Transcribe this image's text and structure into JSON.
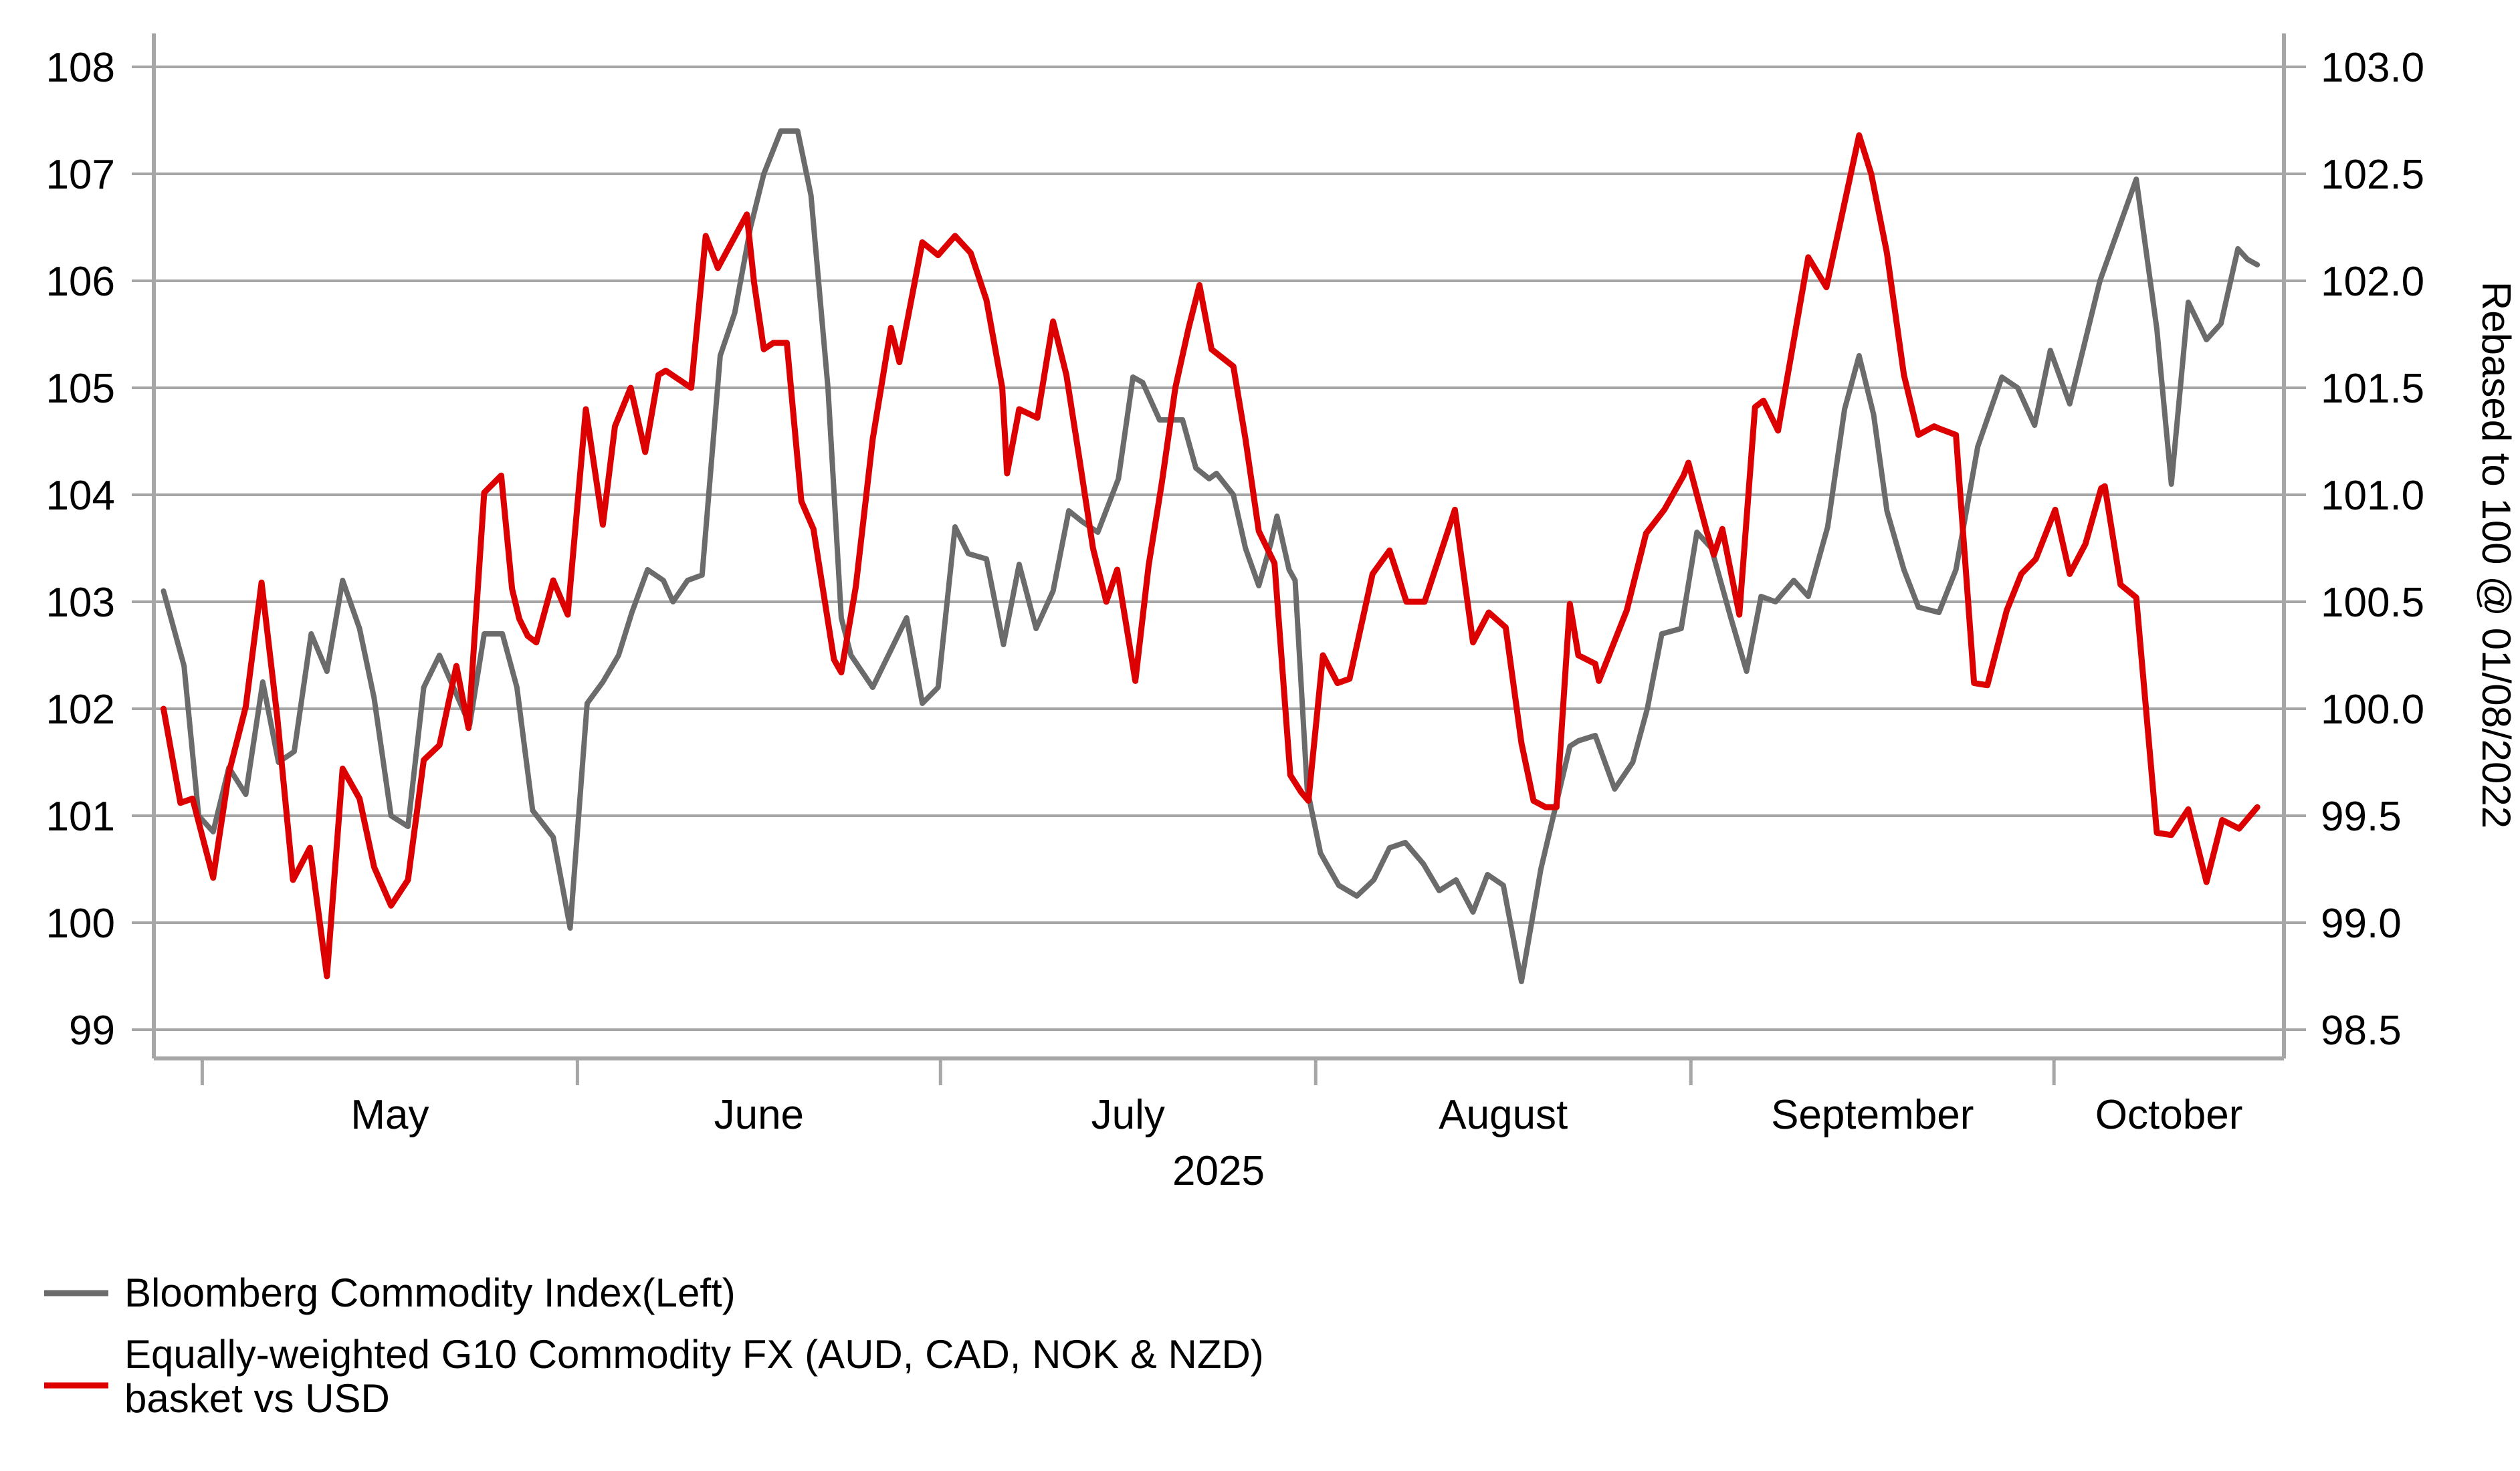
{
  "chart_data": {
    "type": "line",
    "title": "",
    "xlabel": "",
    "x_axis": {
      "year_label": "2025",
      "month_labels": [
        "May",
        "June",
        "July",
        "August",
        "September",
        "October"
      ],
      "month_tick_day_offsets": [
        4,
        35,
        65,
        96,
        127,
        157
      ],
      "domain_days": [
        0,
        176
      ]
    },
    "left_axis": {
      "ticks": [
        99,
        100,
        101,
        102,
        103,
        104,
        105,
        106,
        107,
        108
      ],
      "ylim": [
        99,
        108
      ]
    },
    "right_axis": {
      "ticks": [
        98.5,
        99.0,
        99.5,
        100.0,
        100.5,
        101.0,
        101.5,
        102.0,
        102.5,
        103.0
      ],
      "ylim": [
        98.5,
        103.0
      ],
      "title": "Rebased to 100 @ 01/08/2022"
    },
    "legend": {
      "entries": [
        {
          "label_line1": "Bloomberg Commodity Index(Left)",
          "label_line2": "",
          "color": "#6b6b6b"
        },
        {
          "label_line1": "Equally-weighted G10 Commodity FX (AUD, CAD, NOK & NZD)",
          "label_line2": "basket vs USD",
          "color": "#dd0000"
        }
      ]
    },
    "series": [
      {
        "name": "Bloomberg Commodity Index(Left)",
        "axis": "left",
        "color": "#6b6b6b",
        "stroke_width": 8,
        "points": [
          [
            0.8,
            103.1
          ],
          [
            2.5,
            102.4
          ],
          [
            3.7,
            101.0
          ],
          [
            4.9,
            100.85
          ],
          [
            6.2,
            101.45
          ],
          [
            7.6,
            101.2
          ],
          [
            9.0,
            102.25
          ],
          [
            10.3,
            101.5
          ],
          [
            11.6,
            101.6
          ],
          [
            13.0,
            102.7
          ],
          [
            14.3,
            102.35
          ],
          [
            15.6,
            103.2
          ],
          [
            17.0,
            102.75
          ],
          [
            18.2,
            102.1
          ],
          [
            19.6,
            101.0
          ],
          [
            21.0,
            100.9
          ],
          [
            22.3,
            102.2
          ],
          [
            23.6,
            102.5
          ],
          [
            26.1,
            101.85
          ],
          [
            27.3,
            102.7
          ],
          [
            28.8,
            102.7
          ],
          [
            30.0,
            102.2
          ],
          [
            31.3,
            101.05
          ],
          [
            33.0,
            100.8
          ],
          [
            34.4,
            99.95
          ],
          [
            35.8,
            102.05
          ],
          [
            37.1,
            102.25
          ],
          [
            38.4,
            102.5
          ],
          [
            39.5,
            102.9
          ],
          [
            40.8,
            103.3
          ],
          [
            42.1,
            103.2
          ],
          [
            42.9,
            103.0
          ],
          [
            44.1,
            103.2
          ],
          [
            45.3,
            103.25
          ],
          [
            46.8,
            105.3
          ],
          [
            48.0,
            105.7
          ],
          [
            49.3,
            106.5
          ],
          [
            50.4,
            107.0
          ],
          [
            51.8,
            107.4
          ],
          [
            53.2,
            107.4
          ],
          [
            54.3,
            106.8
          ],
          [
            55.7,
            105.0
          ],
          [
            56.8,
            102.85
          ],
          [
            57.6,
            102.5
          ],
          [
            59.4,
            102.2
          ],
          [
            62.2,
            102.85
          ],
          [
            63.5,
            102.05
          ],
          [
            64.8,
            102.2
          ],
          [
            66.2,
            103.7
          ],
          [
            67.3,
            103.45
          ],
          [
            68.8,
            103.4
          ],
          [
            70.2,
            102.6
          ],
          [
            71.5,
            103.35
          ],
          [
            72.9,
            102.75
          ],
          [
            74.3,
            103.1
          ],
          [
            75.6,
            103.85
          ],
          [
            76.7,
            103.75
          ],
          [
            78.0,
            103.65
          ],
          [
            79.7,
            104.15
          ],
          [
            80.9,
            105.1
          ],
          [
            81.7,
            105.05
          ],
          [
            83.1,
            104.7
          ],
          [
            85.0,
            104.7
          ],
          [
            86.1,
            104.25
          ],
          [
            87.2,
            104.15
          ],
          [
            87.8,
            104.2
          ],
          [
            89.2,
            104.0
          ],
          [
            90.2,
            103.5
          ],
          [
            91.3,
            103.15
          ],
          [
            92.3,
            103.55
          ],
          [
            92.8,
            103.8
          ],
          [
            93.8,
            103.3
          ],
          [
            94.3,
            103.2
          ],
          [
            95.3,
            101.25
          ],
          [
            96.4,
            100.65
          ],
          [
            97.9,
            100.35
          ],
          [
            99.4,
            100.25
          ],
          [
            100.8,
            100.4
          ],
          [
            102.1,
            100.7
          ],
          [
            103.4,
            100.75
          ],
          [
            104.9,
            100.55
          ],
          [
            106.2,
            100.3
          ],
          [
            107.6,
            100.4
          ],
          [
            109.0,
            100.1
          ],
          [
            110.2,
            100.45
          ],
          [
            111.5,
            100.35
          ],
          [
            113.0,
            99.45
          ],
          [
            114.6,
            100.5
          ],
          [
            117.0,
            101.65
          ],
          [
            117.7,
            101.7
          ],
          [
            119.1,
            101.75
          ],
          [
            120.7,
            101.25
          ],
          [
            122.2,
            101.5
          ],
          [
            123.4,
            102.0
          ],
          [
            124.6,
            102.7
          ],
          [
            126.2,
            102.75
          ],
          [
            127.5,
            103.65
          ],
          [
            128.7,
            103.5
          ],
          [
            130.3,
            102.85
          ],
          [
            131.6,
            102.35
          ],
          [
            132.8,
            103.05
          ],
          [
            134.0,
            103.0
          ],
          [
            135.5,
            103.2
          ],
          [
            136.7,
            103.05
          ],
          [
            138.3,
            103.7
          ],
          [
            139.7,
            104.8
          ],
          [
            140.9,
            105.3
          ],
          [
            142.1,
            104.75
          ],
          [
            143.2,
            103.85
          ],
          [
            144.6,
            103.3
          ],
          [
            145.8,
            102.95
          ],
          [
            147.5,
            102.9
          ],
          [
            148.9,
            103.3
          ],
          [
            150.7,
            104.45
          ],
          [
            152.7,
            105.1
          ],
          [
            154.0,
            105.0
          ],
          [
            155.4,
            104.65
          ],
          [
            156.7,
            105.35
          ],
          [
            158.3,
            104.85
          ],
          [
            160.8,
            106.0
          ],
          [
            163.8,
            106.95
          ],
          [
            165.5,
            105.55
          ],
          [
            166.7,
            104.1
          ],
          [
            168.1,
            105.8
          ],
          [
            169.6,
            105.45
          ],
          [
            170.8,
            105.6
          ],
          [
            172.2,
            106.3
          ],
          [
            173.0,
            106.2
          ],
          [
            173.8,
            106.15
          ]
        ]
      },
      {
        "name": "Equally-weighted G10 Commodity FX (AUD, CAD, NOK & NZD) basket vs USD",
        "axis": "right",
        "color": "#dd0000",
        "stroke_width": 9,
        "points": [
          [
            0.8,
            100.0
          ],
          [
            2.2,
            99.56
          ],
          [
            3.2,
            99.58
          ],
          [
            4.9,
            99.21
          ],
          [
            6.2,
            99.7
          ],
          [
            7.6,
            100.01
          ],
          [
            8.9,
            100.59
          ],
          [
            10.2,
            99.96
          ],
          [
            11.5,
            99.2
          ],
          [
            12.9,
            99.35
          ],
          [
            14.3,
            98.75
          ],
          [
            15.6,
            99.72
          ],
          [
            17.0,
            99.58
          ],
          [
            18.2,
            99.26
          ],
          [
            19.6,
            99.08
          ],
          [
            21.0,
            99.2
          ],
          [
            22.3,
            99.76
          ],
          [
            23.6,
            99.83
          ],
          [
            25.0,
            100.2
          ],
          [
            26.0,
            99.91
          ],
          [
            27.3,
            101.01
          ],
          [
            28.7,
            101.09
          ],
          [
            29.6,
            100.56
          ],
          [
            30.2,
            100.42
          ],
          [
            30.9,
            100.34
          ],
          [
            31.6,
            100.31
          ],
          [
            33.0,
            100.6
          ],
          [
            34.2,
            100.44
          ],
          [
            35.7,
            101.4
          ],
          [
            37.1,
            100.86
          ],
          [
            38.1,
            101.32
          ],
          [
            39.4,
            101.5
          ],
          [
            40.6,
            101.2
          ],
          [
            41.7,
            101.56
          ],
          [
            42.3,
            101.58
          ],
          [
            44.4,
            101.5
          ],
          [
            45.6,
            102.21
          ],
          [
            46.6,
            102.06
          ],
          [
            49.0,
            102.31
          ],
          [
            49.6,
            101.99
          ],
          [
            50.4,
            101.68
          ],
          [
            51.2,
            101.71
          ],
          [
            52.3,
            101.71
          ],
          [
            53.5,
            100.97
          ],
          [
            54.5,
            100.84
          ],
          [
            56.2,
            100.23
          ],
          [
            56.8,
            100.17
          ],
          [
            58.0,
            100.57
          ],
          [
            59.4,
            101.26
          ],
          [
            60.9,
            101.78
          ],
          [
            61.6,
            101.62
          ],
          [
            63.5,
            102.18
          ],
          [
            64.8,
            102.12
          ],
          [
            66.2,
            102.21
          ],
          [
            67.5,
            102.13
          ],
          [
            68.8,
            101.91
          ],
          [
            70.1,
            101.5
          ],
          [
            70.5,
            101.1
          ],
          [
            71.5,
            101.4
          ],
          [
            73.0,
            101.36
          ],
          [
            74.3,
            101.81
          ],
          [
            75.4,
            101.56
          ],
          [
            76.5,
            101.16
          ],
          [
            77.6,
            100.75
          ],
          [
            78.7,
            100.5
          ],
          [
            79.6,
            100.65
          ],
          [
            81.1,
            100.13
          ],
          [
            82.2,
            100.67
          ],
          [
            83.3,
            101.06
          ],
          [
            84.4,
            101.5
          ],
          [
            85.5,
            101.78
          ],
          [
            86.4,
            101.98
          ],
          [
            87.4,
            101.68
          ],
          [
            89.2,
            101.6
          ],
          [
            90.2,
            101.26
          ],
          [
            91.3,
            100.83
          ],
          [
            92.6,
            100.68
          ],
          [
            93.9,
            99.69
          ],
          [
            94.8,
            99.61
          ],
          [
            95.4,
            99.57
          ],
          [
            96.6,
            100.25
          ],
          [
            97.8,
            100.12
          ],
          [
            98.8,
            100.14
          ],
          [
            100.7,
            100.63
          ],
          [
            102.1,
            100.74
          ],
          [
            103.5,
            100.5
          ],
          [
            105.0,
            100.5
          ],
          [
            107.5,
            100.93
          ],
          [
            109.0,
            100.31
          ],
          [
            110.3,
            100.45
          ],
          [
            111.7,
            100.38
          ],
          [
            113.0,
            99.84
          ],
          [
            114.0,
            99.57
          ],
          [
            115.0,
            99.54
          ],
          [
            115.9,
            99.54
          ],
          [
            117.0,
            100.49
          ],
          [
            117.7,
            100.25
          ],
          [
            119.1,
            100.21
          ],
          [
            119.4,
            100.13
          ],
          [
            121.7,
            100.46
          ],
          [
            123.3,
            100.82
          ],
          [
            124.8,
            100.93
          ],
          [
            126.4,
            101.09
          ],
          [
            126.8,
            101.15
          ],
          [
            128.3,
            100.83
          ],
          [
            128.9,
            100.72
          ],
          [
            129.6,
            100.84
          ],
          [
            131.0,
            100.44
          ],
          [
            132.3,
            101.41
          ],
          [
            133.0,
            101.44
          ],
          [
            134.2,
            101.3
          ],
          [
            136.7,
            102.11
          ],
          [
            138.2,
            101.97
          ],
          [
            140.9,
            102.68
          ],
          [
            141.9,
            102.5
          ],
          [
            143.2,
            102.13
          ],
          [
            144.6,
            101.56
          ],
          [
            145.8,
            101.28
          ],
          [
            147.1,
            101.32
          ],
          [
            147.5,
            101.31
          ],
          [
            148.9,
            101.28
          ],
          [
            150.4,
            100.12
          ],
          [
            151.5,
            100.11
          ],
          [
            153.1,
            100.46
          ],
          [
            154.3,
            100.63
          ],
          [
            155.5,
            100.7
          ],
          [
            157.1,
            100.93
          ],
          [
            158.3,
            100.63
          ],
          [
            159.6,
            100.77
          ],
          [
            160.9,
            101.03
          ],
          [
            161.2,
            101.04
          ],
          [
            162.5,
            100.58
          ],
          [
            163.8,
            100.52
          ],
          [
            165.5,
            99.42
          ],
          [
            166.7,
            99.41
          ],
          [
            168.1,
            99.53
          ],
          [
            169.6,
            99.19
          ],
          [
            170.9,
            99.48
          ],
          [
            172.3,
            99.44
          ],
          [
            173.8,
            99.54
          ]
        ]
      }
    ],
    "layout_hints": {
      "grid": "horizontal-only",
      "legend_position": "bottom-left",
      "grid_color": "#a6a6a6",
      "background": "#ffffff"
    }
  }
}
